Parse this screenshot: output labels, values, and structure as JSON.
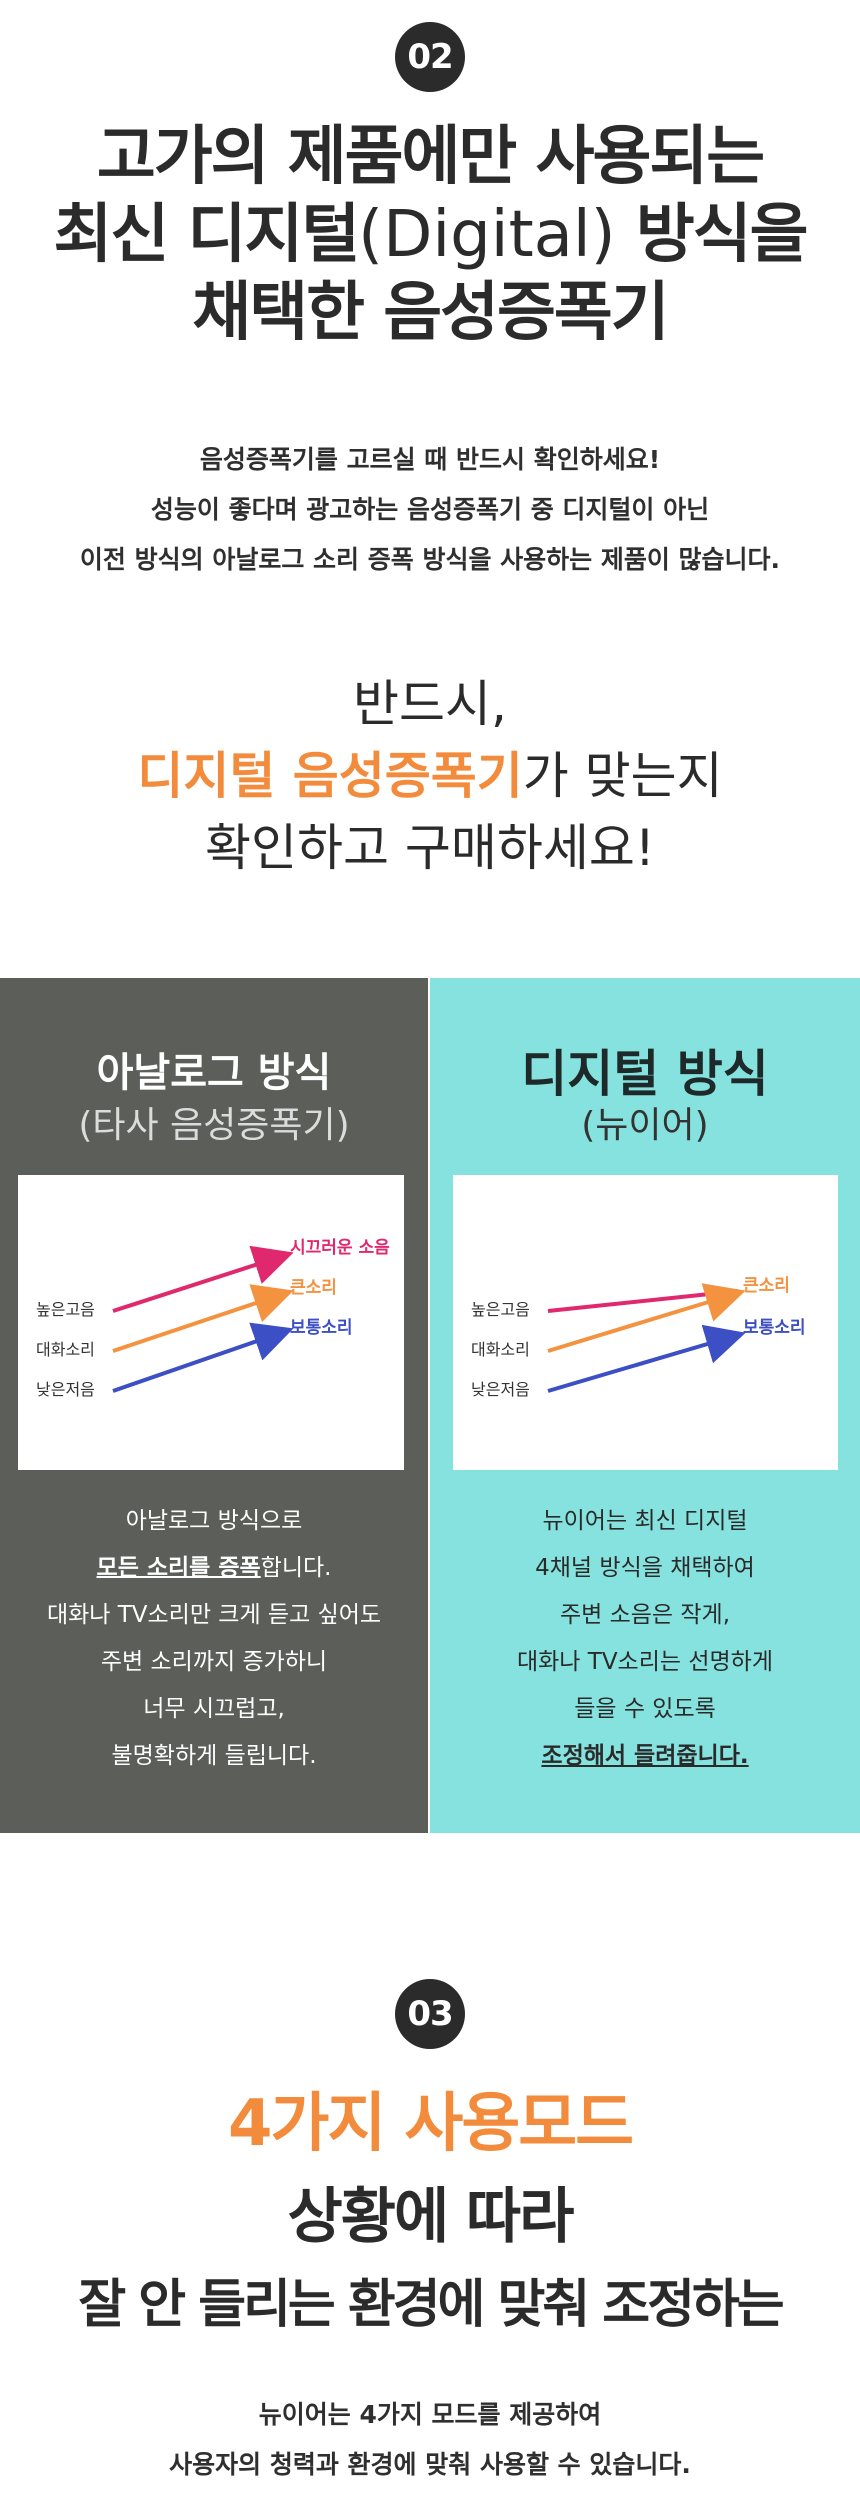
{
  "section2": {
    "badge": "02",
    "headline": {
      "line1": "고가의 제품에만 사용되는",
      "line2_a": "최신 디지털",
      "line2_b": "(Digital)",
      "line2_c": "방식을",
      "line3": "채택한 음성증폭기"
    },
    "paragraph": [
      "음성증폭기를 고르실 때 반드시 확인하세요!",
      "성능이 좋다며 광고하는 음성증폭기 중 디지털이 아닌",
      "이전 방식의 아날로그 소리 증폭 방식을 사용하는 제품이 많습니다."
    ],
    "callout": {
      "line1": "반드시,",
      "line2_highlight": "디지털 음성증폭기",
      "line2_rest": "가 맞는지",
      "line3": "확인하고 구매하세요!"
    }
  },
  "comparison": {
    "left": {
      "title": "아날로그 방식",
      "subtitle": "(타사 음성증폭기)",
      "diagram": {
        "inputs": [
          "높은고음",
          "대화소리",
          "낮은저음"
        ],
        "outputs": [
          "시끄러운 소음",
          "큰소리",
          "보통소리"
        ]
      },
      "text": {
        "line1": "아날로그 방식으로",
        "line2_bold": "모든 소리를 증폭",
        "line2_rest": "합니다.",
        "line3": "대화나 TV소리만 크게 듣고 싶어도",
        "line4": "주변 소리까지 증가하니",
        "line5": "너무 시끄럽고,",
        "line6": "불명확하게 들립니다."
      }
    },
    "right": {
      "title": "디지털 방식",
      "subtitle": "(뉴이어)",
      "diagram": {
        "inputs": [
          "높은고음",
          "대화소리",
          "낮은저음"
        ],
        "outputs": [
          "큰소리",
          "보통소리"
        ]
      },
      "text": [
        "뉴이어는 최신 디지털",
        "4채널 방식을 채택하여",
        "주변 소음은 작게,",
        "대화나 TV소리는 선명하게",
        "들을 수 있도록",
        "조정해서 들려줍니다."
      ]
    },
    "colors": {
      "pink": "#e0286e",
      "orange": "#f3923f",
      "blue": "#3c4fc4",
      "left_bg": "#5c5e5a",
      "right_bg": "#86e2de"
    }
  },
  "section3": {
    "badge": "03",
    "title_orange": "4가지 사용모드",
    "title_line2": "상황에 따라",
    "title_line3": "잘 안 들리는 환경에 맞춰 조정하는",
    "paragraph": [
      "뉴이어는 4가지 모드를 제공하여",
      "사용자의 청력과 환경에 맞춰 사용할 수 있습니다."
    ]
  }
}
